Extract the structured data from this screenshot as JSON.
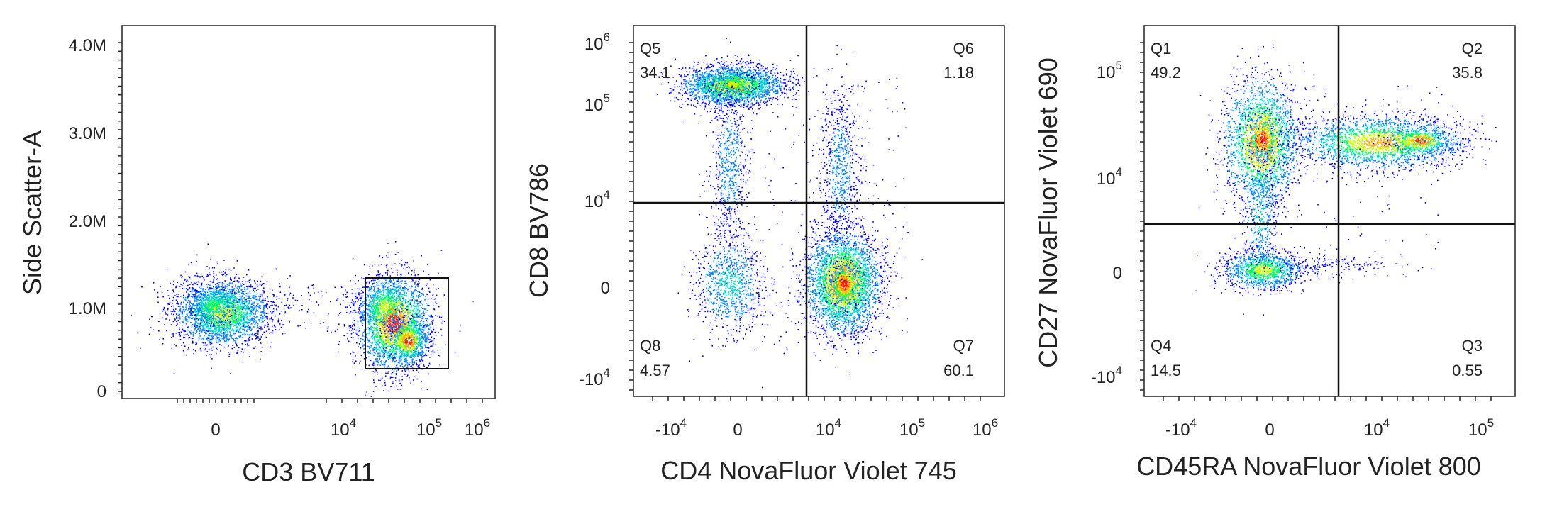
{
  "chart_data": [
    {
      "type": "scatter",
      "xlabel": "CD3 BV711",
      "ylabel": "Side Scatter-A",
      "x_ticks": [
        {
          "value": "0",
          "exp": ""
        },
        {
          "value": "10",
          "exp": "4"
        },
        {
          "value": "10",
          "exp": "5"
        },
        {
          "value": "10",
          "exp": "6"
        }
      ],
      "y_ticks": [
        {
          "value": "0",
          "exp": ""
        },
        {
          "value": "1.0M",
          "exp": ""
        },
        {
          "value": "2.0M",
          "exp": ""
        },
        {
          "value": "3.0M",
          "exp": ""
        },
        {
          "value": "4.0M",
          "exp": ""
        }
      ],
      "gate": "rectangle",
      "populations": [
        {
          "x": 0,
          "ssc_m": 0.95
        },
        {
          "x": 50000,
          "ssc_m": 0.75
        }
      ]
    },
    {
      "type": "scatter",
      "xlabel": "CD4 NovaFluor Violet 745",
      "ylabel": "CD8 BV786",
      "x_ticks": [
        {
          "value": "-10",
          "exp": "4"
        },
        {
          "value": "0",
          "exp": ""
        },
        {
          "value": "10",
          "exp": "4"
        },
        {
          "value": "10",
          "exp": "5"
        },
        {
          "value": "10",
          "exp": "6"
        }
      ],
      "y_ticks": [
        {
          "value": "-10",
          "exp": "4"
        },
        {
          "value": "0",
          "exp": ""
        },
        {
          "value": "10",
          "exp": "4"
        },
        {
          "value": "10",
          "exp": "5"
        },
        {
          "value": "10",
          "exp": "6"
        }
      ],
      "quadrants": [
        {
          "name": "Q5",
          "value": "34.1",
          "corner": "top-left"
        },
        {
          "name": "Q6",
          "value": "1.18",
          "corner": "top-right"
        },
        {
          "name": "Q7",
          "value": "60.1",
          "corner": "bottom-right"
        },
        {
          "name": "Q8",
          "value": "4.57",
          "corner": "bottom-left"
        }
      ]
    },
    {
      "type": "scatter",
      "xlabel": "CD45RA NovaFluor Violet 800",
      "ylabel": "CD27 NovaFluor Violet 690",
      "x_ticks": [
        {
          "value": "-10",
          "exp": "4"
        },
        {
          "value": "0",
          "exp": ""
        },
        {
          "value": "10",
          "exp": "4"
        },
        {
          "value": "10",
          "exp": "5"
        }
      ],
      "y_ticks": [
        {
          "value": "-10",
          "exp": "4"
        },
        {
          "value": "0",
          "exp": ""
        },
        {
          "value": "10",
          "exp": "4"
        },
        {
          "value": "10",
          "exp": "5"
        }
      ],
      "quadrants": [
        {
          "name": "Q1",
          "value": "49.2",
          "corner": "top-left"
        },
        {
          "name": "Q2",
          "value": "35.8",
          "corner": "top-right"
        },
        {
          "name": "Q3",
          "value": "0.55",
          "corner": "bottom-right"
        },
        {
          "name": "Q4",
          "value": "14.5",
          "corner": "bottom-left"
        }
      ]
    }
  ],
  "density_colors": [
    "#0000ff",
    "#0080ff",
    "#00d0d0",
    "#00ff60",
    "#c8ff00",
    "#ffb000",
    "#ff2000"
  ]
}
